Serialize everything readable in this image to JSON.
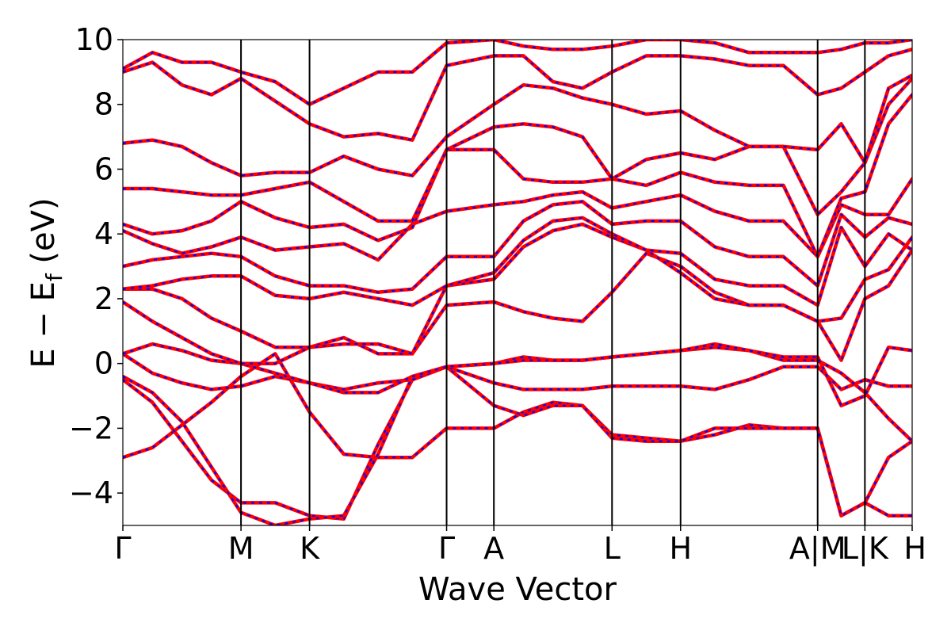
{
  "chart_data": {
    "type": "line",
    "title": "",
    "xlabel": "Wave Vector",
    "ylabel": "E − E",
    "ylabel_sub": "f",
    "ylabel_unit": " (eV)",
    "ylim": [
      -5,
      10
    ],
    "yticks": [
      -4,
      -2,
      0,
      2,
      4,
      6,
      8,
      10
    ],
    "ytick_labels": [
      "−4",
      "−2",
      "0",
      "2",
      "4",
      "6",
      "8",
      "10"
    ],
    "high_symmetry_points": [
      {
        "label": "Γ",
        "k": 0.0
      },
      {
        "label": "M",
        "k": 0.5
      },
      {
        "label": "K",
        "k": 0.79
      },
      {
        "label": "Γ",
        "k": 1.37
      },
      {
        "label": "A",
        "k": 1.57
      },
      {
        "label": "L",
        "k": 2.07
      },
      {
        "label": "H",
        "k": 2.36
      },
      {
        "label": "A|M",
        "k": 2.94
      },
      {
        "label": "L|K",
        "k": 3.14
      },
      {
        "label": "H",
        "k": 3.34
      }
    ],
    "segment_breaks": [
      2.94,
      3.14
    ],
    "series": [
      {
        "color": "#ff0000",
        "style": "solid"
      },
      {
        "color": "#0000ff",
        "style": "dotted"
      }
    ],
    "bands": [
      [
        -2.9,
        -2.6,
        -1.9,
        -1.2,
        -0.4,
        0.3,
        -1.5,
        -2.8,
        -2.9,
        -2.9,
        -2.0,
        -2.0,
        -1.5,
        -1.2,
        -1.3,
        -2.2,
        -2.3,
        -2.4,
        -2.2,
        -1.9,
        -2.0,
        -2.0,
        -4.7,
        -4.3,
        -2.9,
        -2.4
      ],
      [
        -0.5,
        -1.2,
        -2.4,
        -3.6,
        -4.3,
        -4.3,
        -4.7,
        -4.8,
        -2.5,
        -0.5,
        -0.1,
        -1.3,
        -1.6,
        -1.3,
        -1.3,
        -2.3,
        -2.4,
        -2.4,
        -2.0,
        -2.0,
        -2.0,
        -2.0,
        -4.7,
        -4.3,
        -4.7,
        -4.7
      ],
      [
        -0.4,
        -0.9,
        -1.8,
        -3.2,
        -4.6,
        -5.0,
        -4.8,
        -4.7,
        -2.8,
        -0.4,
        -0.1,
        -0.6,
        -0.8,
        -0.8,
        -0.8,
        -0.7,
        -0.7,
        -0.7,
        -0.8,
        -0.5,
        -0.1,
        -0.1,
        -0.8,
        -0.5,
        -0.7,
        -0.7
      ],
      [
        0.3,
        -0.3,
        -0.6,
        -0.8,
        -0.7,
        -0.4,
        -0.6,
        -0.8,
        -0.6,
        -0.5,
        -0.1,
        0.0,
        0.2,
        0.1,
        0.1,
        0.2,
        0.3,
        0.4,
        0.5,
        0.4,
        0.1,
        0.1,
        -0.3,
        -0.9,
        -1.7,
        -2.4
      ],
      [
        0.3,
        0.6,
        0.4,
        0.1,
        0.0,
        -0.3,
        -0.6,
        -0.9,
        -0.9,
        -0.4,
        -0.1,
        0.0,
        0.1,
        0.1,
        0.1,
        0.2,
        0.3,
        0.4,
        0.6,
        0.4,
        0.2,
        0.2,
        -1.3,
        -1.0,
        0.5,
        0.4
      ],
      [
        1.9,
        1.3,
        0.8,
        0.3,
        0.0,
        0.0,
        0.5,
        0.8,
        0.3,
        0.3,
        1.8,
        1.9,
        1.6,
        1.4,
        1.3,
        2.2,
        3.4,
        3.0,
        2.2,
        1.8,
        1.8,
        1.3,
        0.1,
        2.0,
        2.4,
        3.5
      ],
      [
        2.3,
        2.3,
        2.0,
        1.4,
        1.0,
        0.5,
        0.5,
        0.6,
        0.6,
        0.3,
        2.4,
        2.6,
        3.6,
        4.1,
        4.3,
        3.9,
        3.5,
        2.8,
        2.0,
        1.8,
        1.8,
        1.3,
        1.4,
        2.6,
        2.9,
        3.9
      ],
      [
        2.3,
        2.4,
        2.6,
        2.7,
        2.7,
        2.1,
        2.0,
        2.2,
        2.0,
        1.8,
        2.4,
        2.8,
        3.8,
        4.4,
        4.5,
        4.0,
        3.5,
        3.4,
        2.6,
        2.4,
        2.4,
        1.8,
        4.2,
        3.0,
        4.0,
        3.5
      ],
      [
        3.0,
        3.2,
        3.3,
        3.4,
        3.3,
        2.7,
        2.4,
        2.4,
        2.2,
        2.3,
        3.3,
        3.3,
        4.4,
        4.9,
        5.0,
        4.3,
        4.4,
        4.4,
        3.6,
        3.3,
        3.3,
        2.4,
        4.6,
        3.9,
        4.5,
        4.3
      ],
      [
        4.1,
        3.7,
        3.4,
        3.6,
        3.9,
        3.5,
        3.6,
        3.7,
        3.2,
        4.3,
        4.7,
        4.9,
        5.0,
        5.2,
        5.3,
        4.8,
        5.0,
        5.2,
        4.7,
        4.4,
        4.4,
        3.3,
        4.9,
        4.6,
        4.6,
        5.7
      ],
      [
        4.3,
        4.0,
        4.1,
        4.4,
        5.0,
        4.5,
        4.2,
        4.3,
        3.8,
        4.2,
        6.6,
        6.6,
        5.7,
        5.6,
        5.6,
        5.7,
        5.5,
        5.9,
        5.6,
        5.5,
        5.5,
        3.3,
        5.1,
        5.3,
        7.4,
        8.3
      ],
      [
        5.4,
        5.4,
        5.3,
        5.2,
        5.2,
        5.4,
        5.6,
        5.0,
        4.4,
        4.4,
        6.6,
        7.3,
        7.4,
        7.3,
        7.0,
        5.7,
        6.3,
        6.5,
        6.3,
        6.7,
        6.7,
        4.6,
        5.3,
        6.2,
        8.0,
        8.8
      ],
      [
        6.8,
        6.9,
        6.7,
        6.2,
        5.8,
        5.9,
        5.9,
        6.4,
        6.0,
        5.8,
        7.0,
        8.0,
        8.6,
        8.5,
        8.2,
        8.0,
        7.7,
        7.8,
        7.2,
        6.7,
        6.7,
        6.6,
        7.4,
        6.2,
        8.5,
        8.9
      ],
      [
        9.0,
        9.3,
        8.6,
        8.3,
        8.8,
        8.1,
        7.4,
        7.0,
        7.1,
        6.9,
        9.2,
        9.5,
        9.5,
        8.7,
        8.5,
        9.0,
        9.5,
        9.5,
        9.4,
        9.2,
        9.2,
        8.3,
        8.5,
        9.0,
        9.5,
        9.7
      ],
      [
        9.1,
        9.6,
        9.3,
        9.3,
        9.0,
        8.7,
        8.0,
        8.5,
        9.0,
        9.0,
        9.9,
        10.0,
        9.8,
        9.7,
        9.7,
        9.8,
        10.0,
        10.0,
        9.9,
        9.6,
        9.6,
        9.6,
        9.7,
        9.9,
        9.9,
        10.0
      ]
    ]
  }
}
